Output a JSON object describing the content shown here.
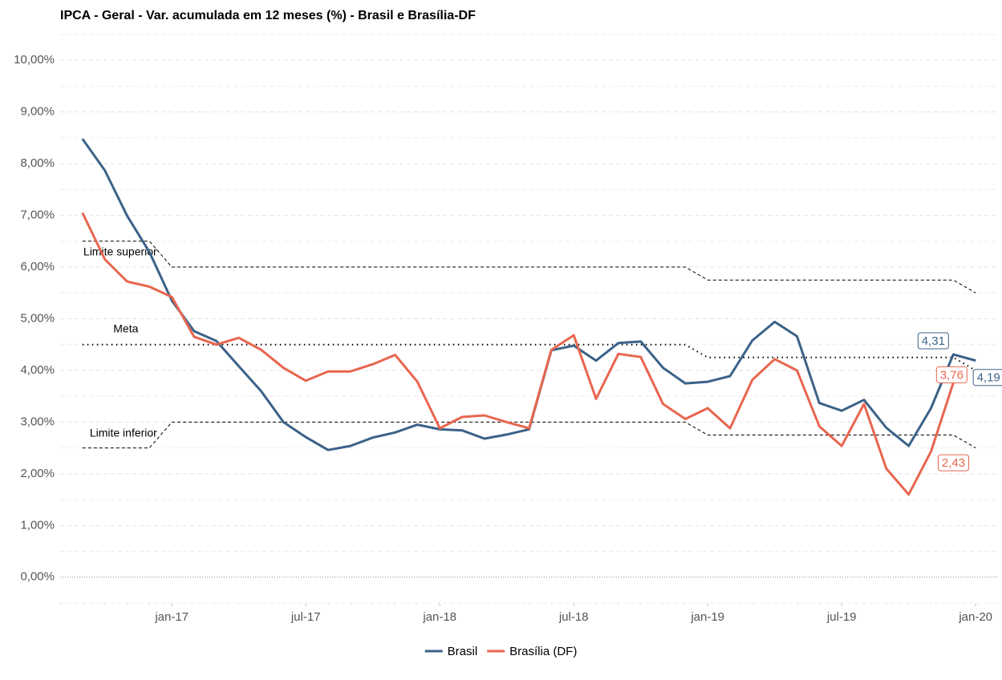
{
  "chart_data": {
    "type": "line",
    "title": "IPCA - Geral - Var. acumulada em 12 meses (%) - Brasil e Brasília-DF",
    "x": [
      "2016-09",
      "2016-10",
      "2016-11",
      "2016-12",
      "2017-01",
      "2017-02",
      "2017-03",
      "2017-04",
      "2017-05",
      "2017-06",
      "2017-07",
      "2017-08",
      "2017-09",
      "2017-10",
      "2017-11",
      "2017-12",
      "2018-01",
      "2018-02",
      "2018-03",
      "2018-04",
      "2018-05",
      "2018-06",
      "2018-07",
      "2018-08",
      "2018-09",
      "2018-10",
      "2018-11",
      "2018-12",
      "2019-01",
      "2019-02",
      "2019-03",
      "2019-04",
      "2019-05",
      "2019-06",
      "2019-07",
      "2019-08",
      "2019-09",
      "2019-10",
      "2019-11",
      "2019-12",
      "2020-01"
    ],
    "xlim": [
      "2016-08",
      "2020-02"
    ],
    "xticks": [
      {
        "value": "2017-01",
        "label": "jan-17"
      },
      {
        "value": "2017-07",
        "label": "jul-17"
      },
      {
        "value": "2018-01",
        "label": "jan-18"
      },
      {
        "value": "2018-07",
        "label": "jul-18"
      },
      {
        "value": "2019-01",
        "label": "jan-19"
      },
      {
        "value": "2019-07",
        "label": "jul-19"
      },
      {
        "value": "2020-01",
        "label": "jan-20"
      }
    ],
    "ylim": [
      -0.5,
      10.5
    ],
    "yticks": [
      {
        "value": 0,
        "label": "0,00%"
      },
      {
        "value": 1,
        "label": "1,00%"
      },
      {
        "value": 2,
        "label": "2,00%"
      },
      {
        "value": 3,
        "label": "3,00%"
      },
      {
        "value": 4,
        "label": "4,00%"
      },
      {
        "value": 5,
        "label": "5,00%"
      },
      {
        "value": 6,
        "label": "6,00%"
      },
      {
        "value": 7,
        "label": "7,00%"
      },
      {
        "value": 8,
        "label": "8,00%"
      },
      {
        "value": 9,
        "label": "9,00%"
      },
      {
        "value": 10,
        "label": "10,00%"
      }
    ],
    "grid": true,
    "legend": "bottom",
    "series": [
      {
        "name": "Brasil",
        "color": "#3b6288",
        "values": [
          8.48,
          7.87,
          6.99,
          6.29,
          5.35,
          4.76,
          4.57,
          4.08,
          3.6,
          3.0,
          2.71,
          2.46,
          2.54,
          2.7,
          2.8,
          2.95,
          2.86,
          2.84,
          2.68,
          2.76,
          2.86,
          4.39,
          4.48,
          4.19,
          4.53,
          4.56,
          4.05,
          3.75,
          3.78,
          3.89,
          4.58,
          4.94,
          4.66,
          3.37,
          3.22,
          3.43,
          2.89,
          2.54,
          3.27,
          4.31,
          4.19
        ],
        "value_labels": [
          null,
          null,
          null,
          null,
          null,
          null,
          null,
          null,
          null,
          null,
          null,
          null,
          null,
          null,
          null,
          null,
          null,
          null,
          null,
          null,
          null,
          null,
          null,
          null,
          null,
          null,
          null,
          null,
          null,
          null,
          null,
          null,
          null,
          null,
          null,
          null,
          null,
          null,
          null,
          "4,31",
          "4,19"
        ]
      },
      {
        "name": "Brasília (DF)",
        "color": "#e8664f",
        "values": [
          7.05,
          6.15,
          5.72,
          5.62,
          5.42,
          4.65,
          4.5,
          4.63,
          4.4,
          4.05,
          3.8,
          3.98,
          3.98,
          4.12,
          4.3,
          3.78,
          2.88,
          3.1,
          3.13,
          3.0,
          2.88,
          4.4,
          4.68,
          3.45,
          4.32,
          4.26,
          3.35,
          3.06,
          3.27,
          2.88,
          3.82,
          4.22,
          4.0,
          2.92,
          2.54,
          3.35,
          2.1,
          1.6,
          2.43,
          3.76,
          null
        ],
        "value_labels": [
          null,
          null,
          null,
          null,
          null,
          null,
          null,
          null,
          null,
          null,
          null,
          null,
          null,
          null,
          null,
          null,
          null,
          null,
          null,
          null,
          null,
          null,
          null,
          null,
          null,
          null,
          null,
          null,
          null,
          null,
          null,
          null,
          null,
          null,
          null,
          null,
          null,
          null,
          "2,43",
          "3,76",
          null
        ]
      }
    ],
    "reference_lines": [
      {
        "label": "Limite superior",
        "style": "dashed",
        "values": [
          6.5,
          6.5,
          6.5,
          6.5,
          6,
          6,
          6,
          6,
          6,
          6,
          6,
          6,
          6,
          6,
          6,
          6,
          6,
          6,
          6,
          6,
          6,
          6,
          6,
          6,
          6,
          6,
          6,
          6,
          5.75,
          5.75,
          5.75,
          5.75,
          5.75,
          5.75,
          5.75,
          5.75,
          5.75,
          5.75,
          5.75,
          5.75,
          5.5
        ]
      },
      {
        "label": "Meta",
        "style": "dotted",
        "values": [
          4.5,
          4.5,
          4.5,
          4.5,
          4.5,
          4.5,
          4.5,
          4.5,
          4.5,
          4.5,
          4.5,
          4.5,
          4.5,
          4.5,
          4.5,
          4.5,
          4.5,
          4.5,
          4.5,
          4.5,
          4.5,
          4.5,
          4.5,
          4.5,
          4.5,
          4.5,
          4.5,
          4.5,
          4.25,
          4.25,
          4.25,
          4.25,
          4.25,
          4.25,
          4.25,
          4.25,
          4.25,
          4.25,
          4.25,
          4.25,
          4
        ]
      },
      {
        "label": "Limite inferior",
        "style": "dashed",
        "values": [
          2.5,
          2.5,
          2.5,
          2.5,
          3,
          3,
          3,
          3,
          3,
          3,
          3,
          3,
          3,
          3,
          3,
          3,
          3,
          3,
          3,
          3,
          3,
          3,
          3,
          3,
          3,
          3,
          3,
          3,
          2.75,
          2.75,
          2.75,
          2.75,
          2.75,
          2.75,
          2.75,
          2.75,
          2.75,
          2.75,
          2.75,
          2.75,
          2.5
        ]
      }
    ]
  }
}
